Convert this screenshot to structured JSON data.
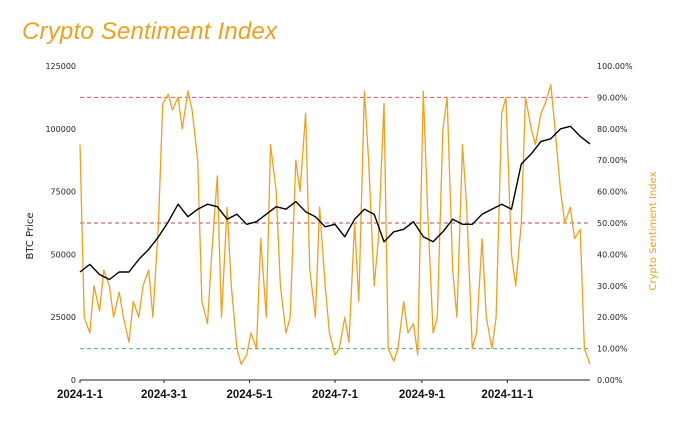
{
  "chart_data": {
    "type": "line",
    "title": "Crypto Sentiment Index",
    "xlabel": "",
    "ylabel": "BTC Price",
    "ylabel_right": "Crypto Sentiment Index",
    "x_ticks": [
      "2024-1-1",
      "2024-3-1",
      "2024-5-1",
      "2024-7-1",
      "2024-9-1",
      "2024-11-1"
    ],
    "y_ticks": [
      "0",
      "25000",
      "50000",
      "75000",
      "100000",
      "125000"
    ],
    "y2_ticks": [
      "0.00%",
      "10.00%",
      "20.00%",
      "30.00%",
      "40.00%",
      "50.00%",
      "60.00%",
      "70.00%",
      "80.00%",
      "90.00%",
      "100.00%"
    ],
    "ylim": [
      0,
      125000
    ],
    "y2lim": [
      0,
      100
    ],
    "x_range": [
      "2024-01-01",
      "2024-12-30"
    ],
    "reference_lines": [
      {
        "axis": "y2",
        "value": 90,
        "color": "#e05a5a"
      },
      {
        "axis": "y2",
        "value": 50,
        "color": "#b05050"
      },
      {
        "axis": "y2",
        "value": 10,
        "color": "#4caf6a"
      }
    ],
    "series": [
      {
        "axis": "y",
        "color": "#000000",
        "x": [
          "2024-01-01",
          "2024-01-08",
          "2024-01-15",
          "2024-01-22",
          "2024-01-29",
          "2024-02-05",
          "2024-02-12",
          "2024-02-19",
          "2024-02-26",
          "2024-03-04",
          "2024-03-11",
          "2024-03-18",
          "2024-03-25",
          "2024-04-01",
          "2024-04-08",
          "2024-04-15",
          "2024-04-22",
          "2024-04-29",
          "2024-05-06",
          "2024-05-13",
          "2024-05-20",
          "2024-05-27",
          "2024-06-03",
          "2024-06-10",
          "2024-06-17",
          "2024-06-24",
          "2024-07-01",
          "2024-07-08",
          "2024-07-15",
          "2024-07-22",
          "2024-07-29",
          "2024-08-05",
          "2024-08-12",
          "2024-08-19",
          "2024-08-26",
          "2024-09-02",
          "2024-09-09",
          "2024-09-16",
          "2024-09-23",
          "2024-09-30",
          "2024-10-07",
          "2024-10-14",
          "2024-10-21",
          "2024-10-28",
          "2024-11-04",
          "2024-11-11",
          "2024-11-18",
          "2024-11-25",
          "2024-12-02",
          "2024-12-09",
          "2024-12-16",
          "2024-12-23",
          "2024-12-30"
        ],
        "values": [
          43000,
          46000,
          42000,
          40000,
          43000,
          43000,
          48000,
          52000,
          57000,
          63000,
          70000,
          65000,
          68000,
          70000,
          69000,
          64000,
          66000,
          62000,
          63000,
          66000,
          69000,
          68000,
          71000,
          67000,
          65000,
          61000,
          62000,
          57000,
          64000,
          68000,
          66000,
          55000,
          59000,
          60000,
          63000,
          57000,
          55000,
          59000,
          64000,
          62000,
          62000,
          66000,
          68000,
          70000,
          68000,
          86000,
          90000,
          95000,
          96000,
          100000,
          101000,
          97000,
          94000
        ]
      },
      {
        "axis": "y2",
        "color": "#f0a01c",
        "x": [
          "2024-01-01",
          "2024-01-04",
          "2024-01-08",
          "2024-01-11",
          "2024-01-15",
          "2024-01-18",
          "2024-01-22",
          "2024-01-25",
          "2024-01-29",
          "2024-02-01",
          "2024-02-05",
          "2024-02-08",
          "2024-02-12",
          "2024-02-15",
          "2024-02-19",
          "2024-02-22",
          "2024-02-26",
          "2024-02-29",
          "2024-03-04",
          "2024-03-07",
          "2024-03-11",
          "2024-03-14",
          "2024-03-18",
          "2024-03-21",
          "2024-03-25",
          "2024-03-28",
          "2024-04-01",
          "2024-04-04",
          "2024-04-08",
          "2024-04-11",
          "2024-04-15",
          "2024-04-18",
          "2024-04-22",
          "2024-04-25",
          "2024-04-29",
          "2024-05-02",
          "2024-05-06",
          "2024-05-09",
          "2024-05-13",
          "2024-05-16",
          "2024-05-20",
          "2024-05-23",
          "2024-05-27",
          "2024-05-30",
          "2024-06-03",
          "2024-06-06",
          "2024-06-10",
          "2024-06-13",
          "2024-06-17",
          "2024-06-20",
          "2024-06-24",
          "2024-06-27",
          "2024-07-01",
          "2024-07-04",
          "2024-07-08",
          "2024-07-11",
          "2024-07-15",
          "2024-07-18",
          "2024-07-22",
          "2024-07-25",
          "2024-07-29",
          "2024-08-01",
          "2024-08-05",
          "2024-08-08",
          "2024-08-12",
          "2024-08-15",
          "2024-08-19",
          "2024-08-22",
          "2024-08-26",
          "2024-08-29",
          "2024-09-02",
          "2024-09-05",
          "2024-09-09",
          "2024-09-12",
          "2024-09-16",
          "2024-09-19",
          "2024-09-23",
          "2024-09-26",
          "2024-09-30",
          "2024-10-03",
          "2024-10-07",
          "2024-10-10",
          "2024-10-14",
          "2024-10-17",
          "2024-10-21",
          "2024-10-24",
          "2024-10-28",
          "2024-10-31",
          "2024-11-04",
          "2024-11-07",
          "2024-11-11",
          "2024-11-14",
          "2024-11-18",
          "2024-11-21",
          "2024-11-25",
          "2024-11-28",
          "2024-12-02",
          "2024-12-05",
          "2024-12-09",
          "2024-12-12",
          "2024-12-16",
          "2024-12-19",
          "2024-12-23",
          "2024-12-26",
          "2024-12-30"
        ],
        "values": [
          75,
          20,
          15,
          30,
          22,
          35,
          30,
          20,
          28,
          20,
          12,
          25,
          20,
          30,
          35,
          20,
          50,
          88,
          91,
          86,
          90,
          80,
          92,
          86,
          70,
          25,
          18,
          40,
          65,
          20,
          55,
          30,
          10,
          5,
          8,
          15,
          10,
          45,
          20,
          75,
          60,
          30,
          15,
          20,
          70,
          60,
          85,
          35,
          20,
          55,
          30,
          15,
          8,
          10,
          20,
          12,
          50,
          25,
          92,
          70,
          30,
          45,
          88,
          10,
          6,
          10,
          25,
          15,
          18,
          8,
          92,
          55,
          15,
          20,
          80,
          90,
          35,
          20,
          75,
          55,
          10,
          15,
          45,
          20,
          10,
          20,
          85,
          90,
          40,
          30,
          50,
          90,
          80,
          75,
          85,
          88,
          94,
          80,
          60,
          50,
          55,
          45,
          48,
          10,
          5
        ]
      }
    ],
    "grid": false,
    "legend": "none"
  }
}
